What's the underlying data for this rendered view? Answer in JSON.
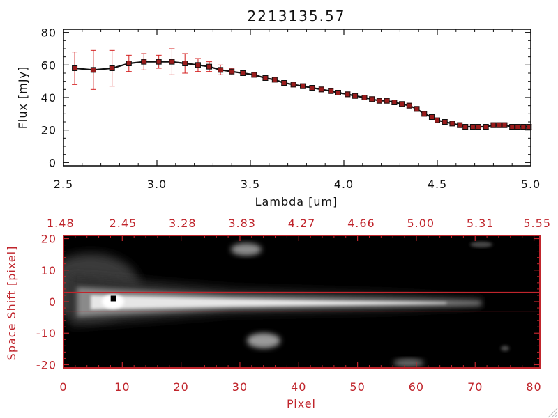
{
  "chart_data": [
    {
      "type": "line",
      "title": "2213135.57",
      "xlabel": "Lambda [um]",
      "ylabel": "Flux [mJy]",
      "xlim": [
        2.5,
        5.0
      ],
      "ylim": [
        -2,
        82
      ],
      "x_ticks": [
        "2.5",
        "3.0",
        "3.5",
        "4.0",
        "4.5",
        "5.0"
      ],
      "y_ticks": [
        "0",
        "20",
        "40",
        "60",
        "80"
      ],
      "grid": false,
      "colors": {
        "line": "#111111",
        "marker": "#9a1b1b",
        "errorbar": "#d42020"
      },
      "series": [
        {
          "x": [
            2.56,
            2.66,
            2.76,
            2.85,
            2.93,
            3.01,
            3.08,
            3.15,
            3.22,
            3.28,
            3.34,
            3.4,
            3.46,
            3.52,
            3.58,
            3.63,
            3.68,
            3.73,
            3.78,
            3.83,
            3.88,
            3.93,
            3.97,
            4.02,
            4.06,
            4.11,
            4.15,
            4.19,
            4.23,
            4.27,
            4.31,
            4.35,
            4.39,
            4.43,
            4.47,
            4.5,
            4.54,
            4.58,
            4.62,
            4.65,
            4.69,
            4.72,
            4.76,
            4.8,
            4.83,
            4.86,
            4.9,
            4.93,
            4.96,
            4.99
          ],
          "y": [
            58,
            57,
            58,
            61,
            62,
            62,
            62,
            61,
            60,
            59,
            57,
            56,
            55,
            54,
            52,
            51,
            49,
            48,
            47,
            46,
            45,
            44,
            43,
            42,
            41,
            40,
            39,
            38,
            38,
            37,
            36,
            35,
            33,
            30,
            28,
            26,
            25,
            24,
            23,
            22,
            22,
            22,
            22,
            23,
            23,
            23,
            22,
            22,
            22,
            22
          ],
          "err": [
            10,
            12,
            11,
            5,
            5,
            4,
            8,
            6,
            4,
            3,
            3,
            2,
            1.5,
            1.5,
            1.5,
            1.5,
            1.5,
            1.5,
            1.5,
            1.5,
            1.5,
            1.5,
            1.5,
            1.5,
            1.5,
            1.5,
            1.5,
            1.5,
            1.5,
            1.5,
            1.5,
            1.5,
            1.5,
            1.5,
            1.5,
            1.5,
            1.5,
            1.5,
            1.5,
            1.5,
            1.5,
            1.5,
            1.5,
            1.5,
            1.5,
            1.5,
            1.5,
            1.5,
            1.5,
            1.5
          ]
        }
      ]
    },
    {
      "type": "heatmap",
      "xlabel": "Pixel",
      "ylabel": "Space Shift [pixel]",
      "xlim": [
        0,
        81
      ],
      "ylim": [
        -21,
        21
      ],
      "x_ticks": [
        "0",
        "10",
        "20",
        "30",
        "40",
        "50",
        "60",
        "70",
        "80"
      ],
      "y_ticks": [
        "-20",
        "-10",
        "0",
        "10",
        "20"
      ],
      "top_axis_ticks": [
        "1.48",
        "2.45",
        "3.28",
        "3.83",
        "4.27",
        "4.66",
        "5.00",
        "5.31",
        "5.55"
      ],
      "extraction_window": [
        -3,
        3
      ],
      "marker_point": [
        8.5,
        1
      ],
      "colors": {
        "axes": "#c0252c",
        "window_lines": "#c0252c",
        "background": "#000000"
      }
    }
  ]
}
